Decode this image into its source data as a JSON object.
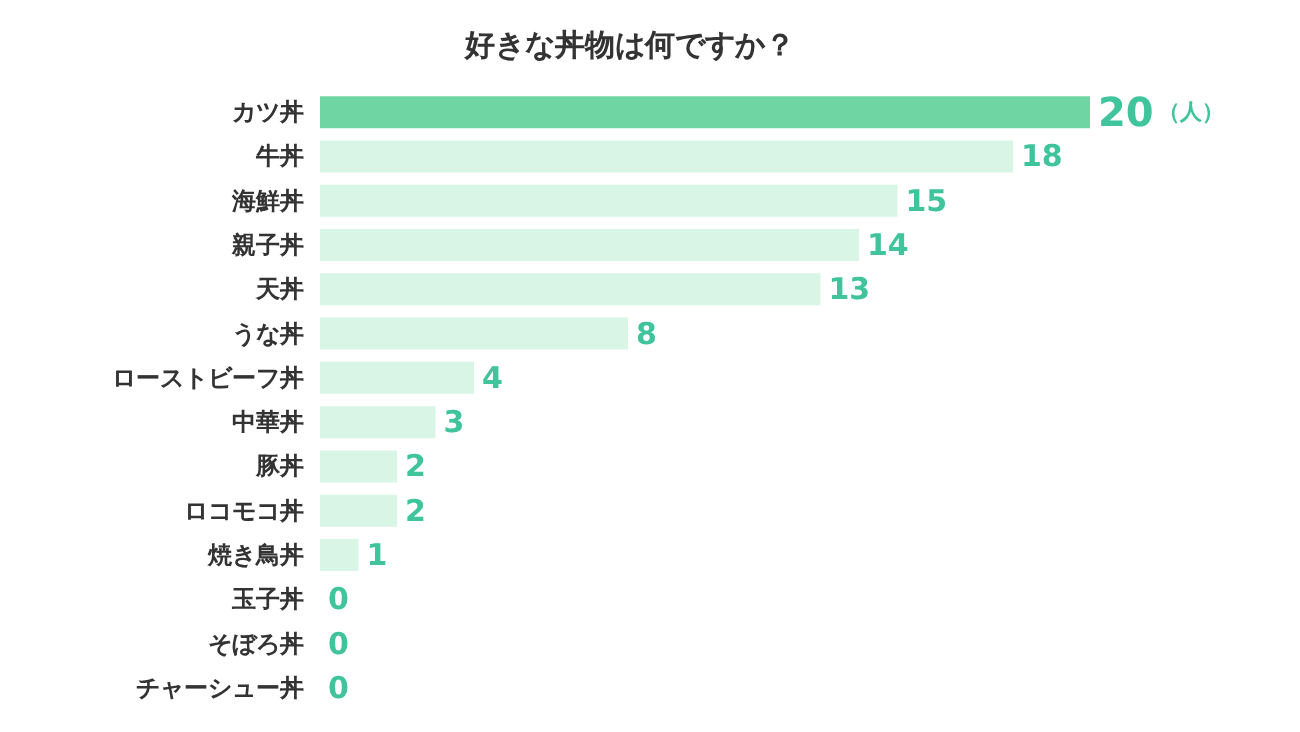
{
  "chart_data": {
    "type": "bar",
    "orientation": "horizontal",
    "title": "好きな丼物は何ですか？",
    "categories": [
      "カツ丼",
      "牛丼",
      "海鮮丼",
      "親子丼",
      "天丼",
      "うな丼",
      "ローストビーフ丼",
      "中華丼",
      "豚丼",
      "ロコモコ丼",
      "焼き鳥丼",
      "玉子丼",
      "そぼろ丼",
      "チャーシュー丼"
    ],
    "values": [
      20,
      18,
      15,
      14,
      13,
      8,
      4,
      3,
      2,
      2,
      1,
      0,
      0,
      0
    ],
    "colors": [
      "#6fd6a3",
      "#d8f5e6",
      "#d8f5e6",
      "#d8f5e6",
      "#d8f5e6",
      "#d8f5e6",
      "#d8f5e6",
      "#d8f5e6",
      "#d8f5e6",
      "#d8f5e6",
      "#d8f5e6",
      "#d8f5e6",
      "#d8f5e6",
      "#d8f5e6"
    ],
    "data_labels": true,
    "annotations": [
      "（人）"
    ]
  }
}
